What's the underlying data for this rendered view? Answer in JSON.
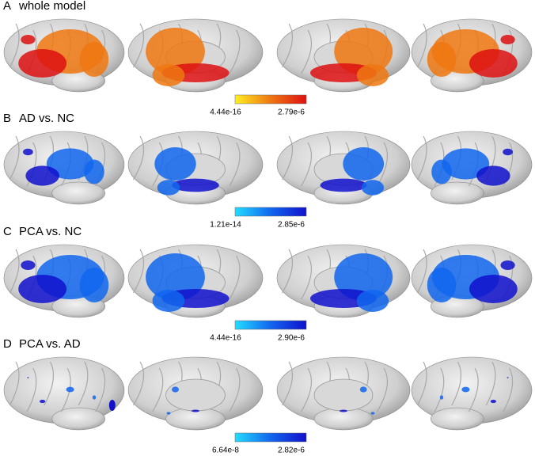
{
  "panels": [
    {
      "letter": "A",
      "title": "whole model",
      "colorbar": {
        "min": "4.44e-16",
        "max": "2.79e-6",
        "colors": [
          "#ffee22",
          "#ee7711",
          "#dd1111"
        ]
      }
    },
    {
      "letter": "B",
      "title": "AD vs. NC",
      "colorbar": {
        "min": "1.21e-14",
        "max": "2.85e-6",
        "colors": [
          "#22ddff",
          "#1166ee",
          "#1111cc"
        ]
      }
    },
    {
      "letter": "C",
      "title": "PCA vs. NC",
      "colorbar": {
        "min": "4.44e-16",
        "max": "2.90e-6",
        "colors": [
          "#22ddff",
          "#1166ee",
          "#1111cc"
        ]
      }
    },
    {
      "letter": "D",
      "title": "PCA vs. AD",
      "colorbar": {
        "min": "6.64e-8",
        "max": "2.82e-6",
        "colors": [
          "#22ddff",
          "#1166ee",
          "#1111cc"
        ]
      }
    }
  ]
}
